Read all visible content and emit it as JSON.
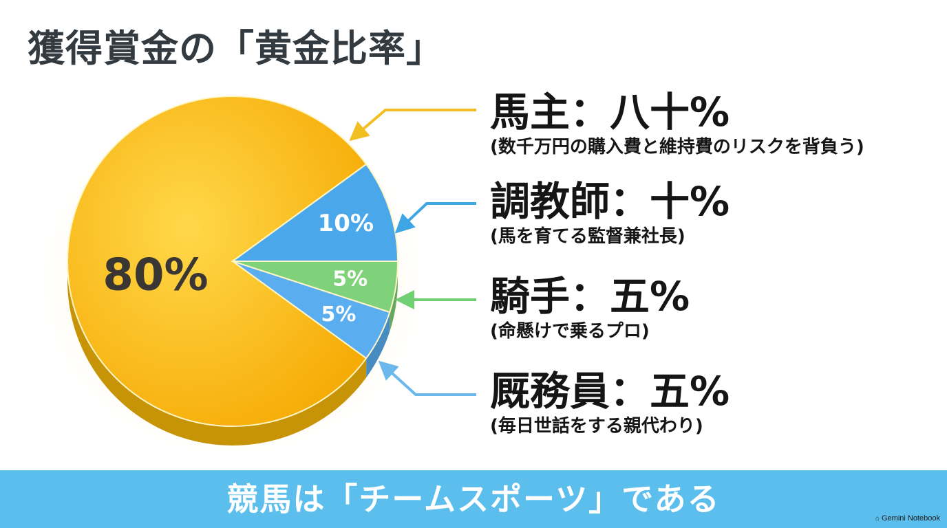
{
  "title": "獲得賞金の「黄金比率」",
  "chart_data": {
    "type": "pie",
    "slices": [
      {
        "label": "80%",
        "value": 80,
        "color": "#f9b90a",
        "legend_title": "馬主：八十%",
        "legend_sub": "(数千万円の購入費と維持費のリスクを背負う)"
      },
      {
        "label": "10%",
        "value": 10,
        "color": "#4aa8ea",
        "legend_title": "調教師：十%",
        "legend_sub": "(馬を育てる監督兼社長)"
      },
      {
        "label": "5%",
        "value": 5,
        "color": "#7fd27a",
        "legend_title": "騎手：五%",
        "legend_sub": "(命懸けで乗るプロ)"
      },
      {
        "label": "5%",
        "value": 5,
        "color": "#5aaef0",
        "legend_title": "厩務員：五%",
        "legend_sub": "(毎日世話をする親代わり)"
      }
    ]
  },
  "footer": "競馬は「チームスポーツ」である",
  "brand": "Gemini Notebook"
}
